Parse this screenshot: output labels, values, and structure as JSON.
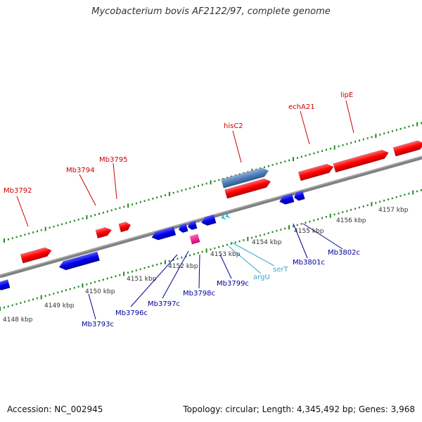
{
  "title": "Mycobacterium bovis AF2122/97, complete genome",
  "footer": {
    "accession": "Accession: NC_002945",
    "summary": "Topology: circular; Length: 4,345,492 bp; Genes: 3,968"
  },
  "colors": {
    "forward_gene": "#ff0000",
    "reverse_gene": "#0000ee",
    "selected_gene": "#4f81bd",
    "trna": "#33bbdd",
    "misc": "#ee1188",
    "backbone": "#808080",
    "tick": "#228822",
    "forward_label": "#cc0000",
    "reverse_label": "#000099",
    "trna_label": "#33aacc"
  },
  "tick_labels": [
    "4148 kbp",
    "4149 kbp",
    "4150 kbp",
    "4151 kbp",
    "4152 kbp",
    "4153 kbp",
    "4154 kbp",
    "4155 kbp",
    "4156 kbp",
    "4157 kbp"
  ],
  "gene_labels": {
    "mb3792": "Mb3792",
    "mb3794": "Mb3794",
    "mb3795": "Mb3795",
    "hisc2": "hisC2",
    "echa21": "echA21",
    "lipe": "lipE",
    "mb3793c": "Mb3793c",
    "mb3796c": "Mb3796c",
    "mb3797c": "Mb3797c",
    "mb3798c": "Mb3798c",
    "mb3799c": "Mb3799c",
    "argu": "argU",
    "sert": "serT",
    "mb3801c": "Mb3801c",
    "mb3802c": "Mb3802c"
  }
}
